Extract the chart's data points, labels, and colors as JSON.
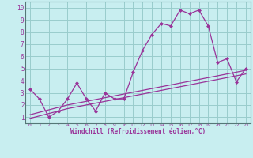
{
  "x": [
    0,
    1,
    2,
    3,
    4,
    5,
    6,
    7,
    8,
    9,
    10,
    11,
    12,
    13,
    14,
    15,
    16,
    17,
    18,
    19,
    20,
    21,
    22,
    23
  ],
  "y_main": [
    3.3,
    2.5,
    1.0,
    1.5,
    2.5,
    3.8,
    2.5,
    1.5,
    3.0,
    2.5,
    2.5,
    4.7,
    6.5,
    7.8,
    8.7,
    8.5,
    9.8,
    9.5,
    9.8,
    8.5,
    5.5,
    5.8,
    3.9,
    5.0
  ],
  "y_trend1": [
    1.2,
    1.4,
    1.6,
    1.8,
    2.0,
    2.15,
    2.3,
    2.45,
    2.6,
    2.75,
    2.9,
    3.05,
    3.2,
    3.35,
    3.5,
    3.65,
    3.8,
    3.95,
    4.1,
    4.25,
    4.4,
    4.55,
    4.7,
    4.85
  ],
  "y_trend2": [
    0.9,
    1.1,
    1.3,
    1.5,
    1.7,
    1.85,
    2.0,
    2.15,
    2.3,
    2.45,
    2.6,
    2.75,
    2.9,
    3.05,
    3.2,
    3.35,
    3.5,
    3.65,
    3.8,
    3.95,
    4.1,
    4.25,
    4.4,
    4.55
  ],
  "line_color": "#993399",
  "bg_color": "#c8eef0",
  "grid_color": "#99cccc",
  "xlabel": "Windchill (Refroidissement éolien,°C)",
  "xlim": [
    -0.5,
    23.5
  ],
  "ylim": [
    0.5,
    10.5
  ],
  "xticks": [
    0,
    1,
    2,
    3,
    4,
    5,
    6,
    7,
    8,
    9,
    10,
    11,
    12,
    13,
    14,
    15,
    16,
    17,
    18,
    19,
    20,
    21,
    22,
    23
  ],
  "yticks": [
    1,
    2,
    3,
    4,
    5,
    6,
    7,
    8,
    9,
    10
  ],
  "marker": "D",
  "marker_size": 2.0,
  "linewidth": 0.9
}
